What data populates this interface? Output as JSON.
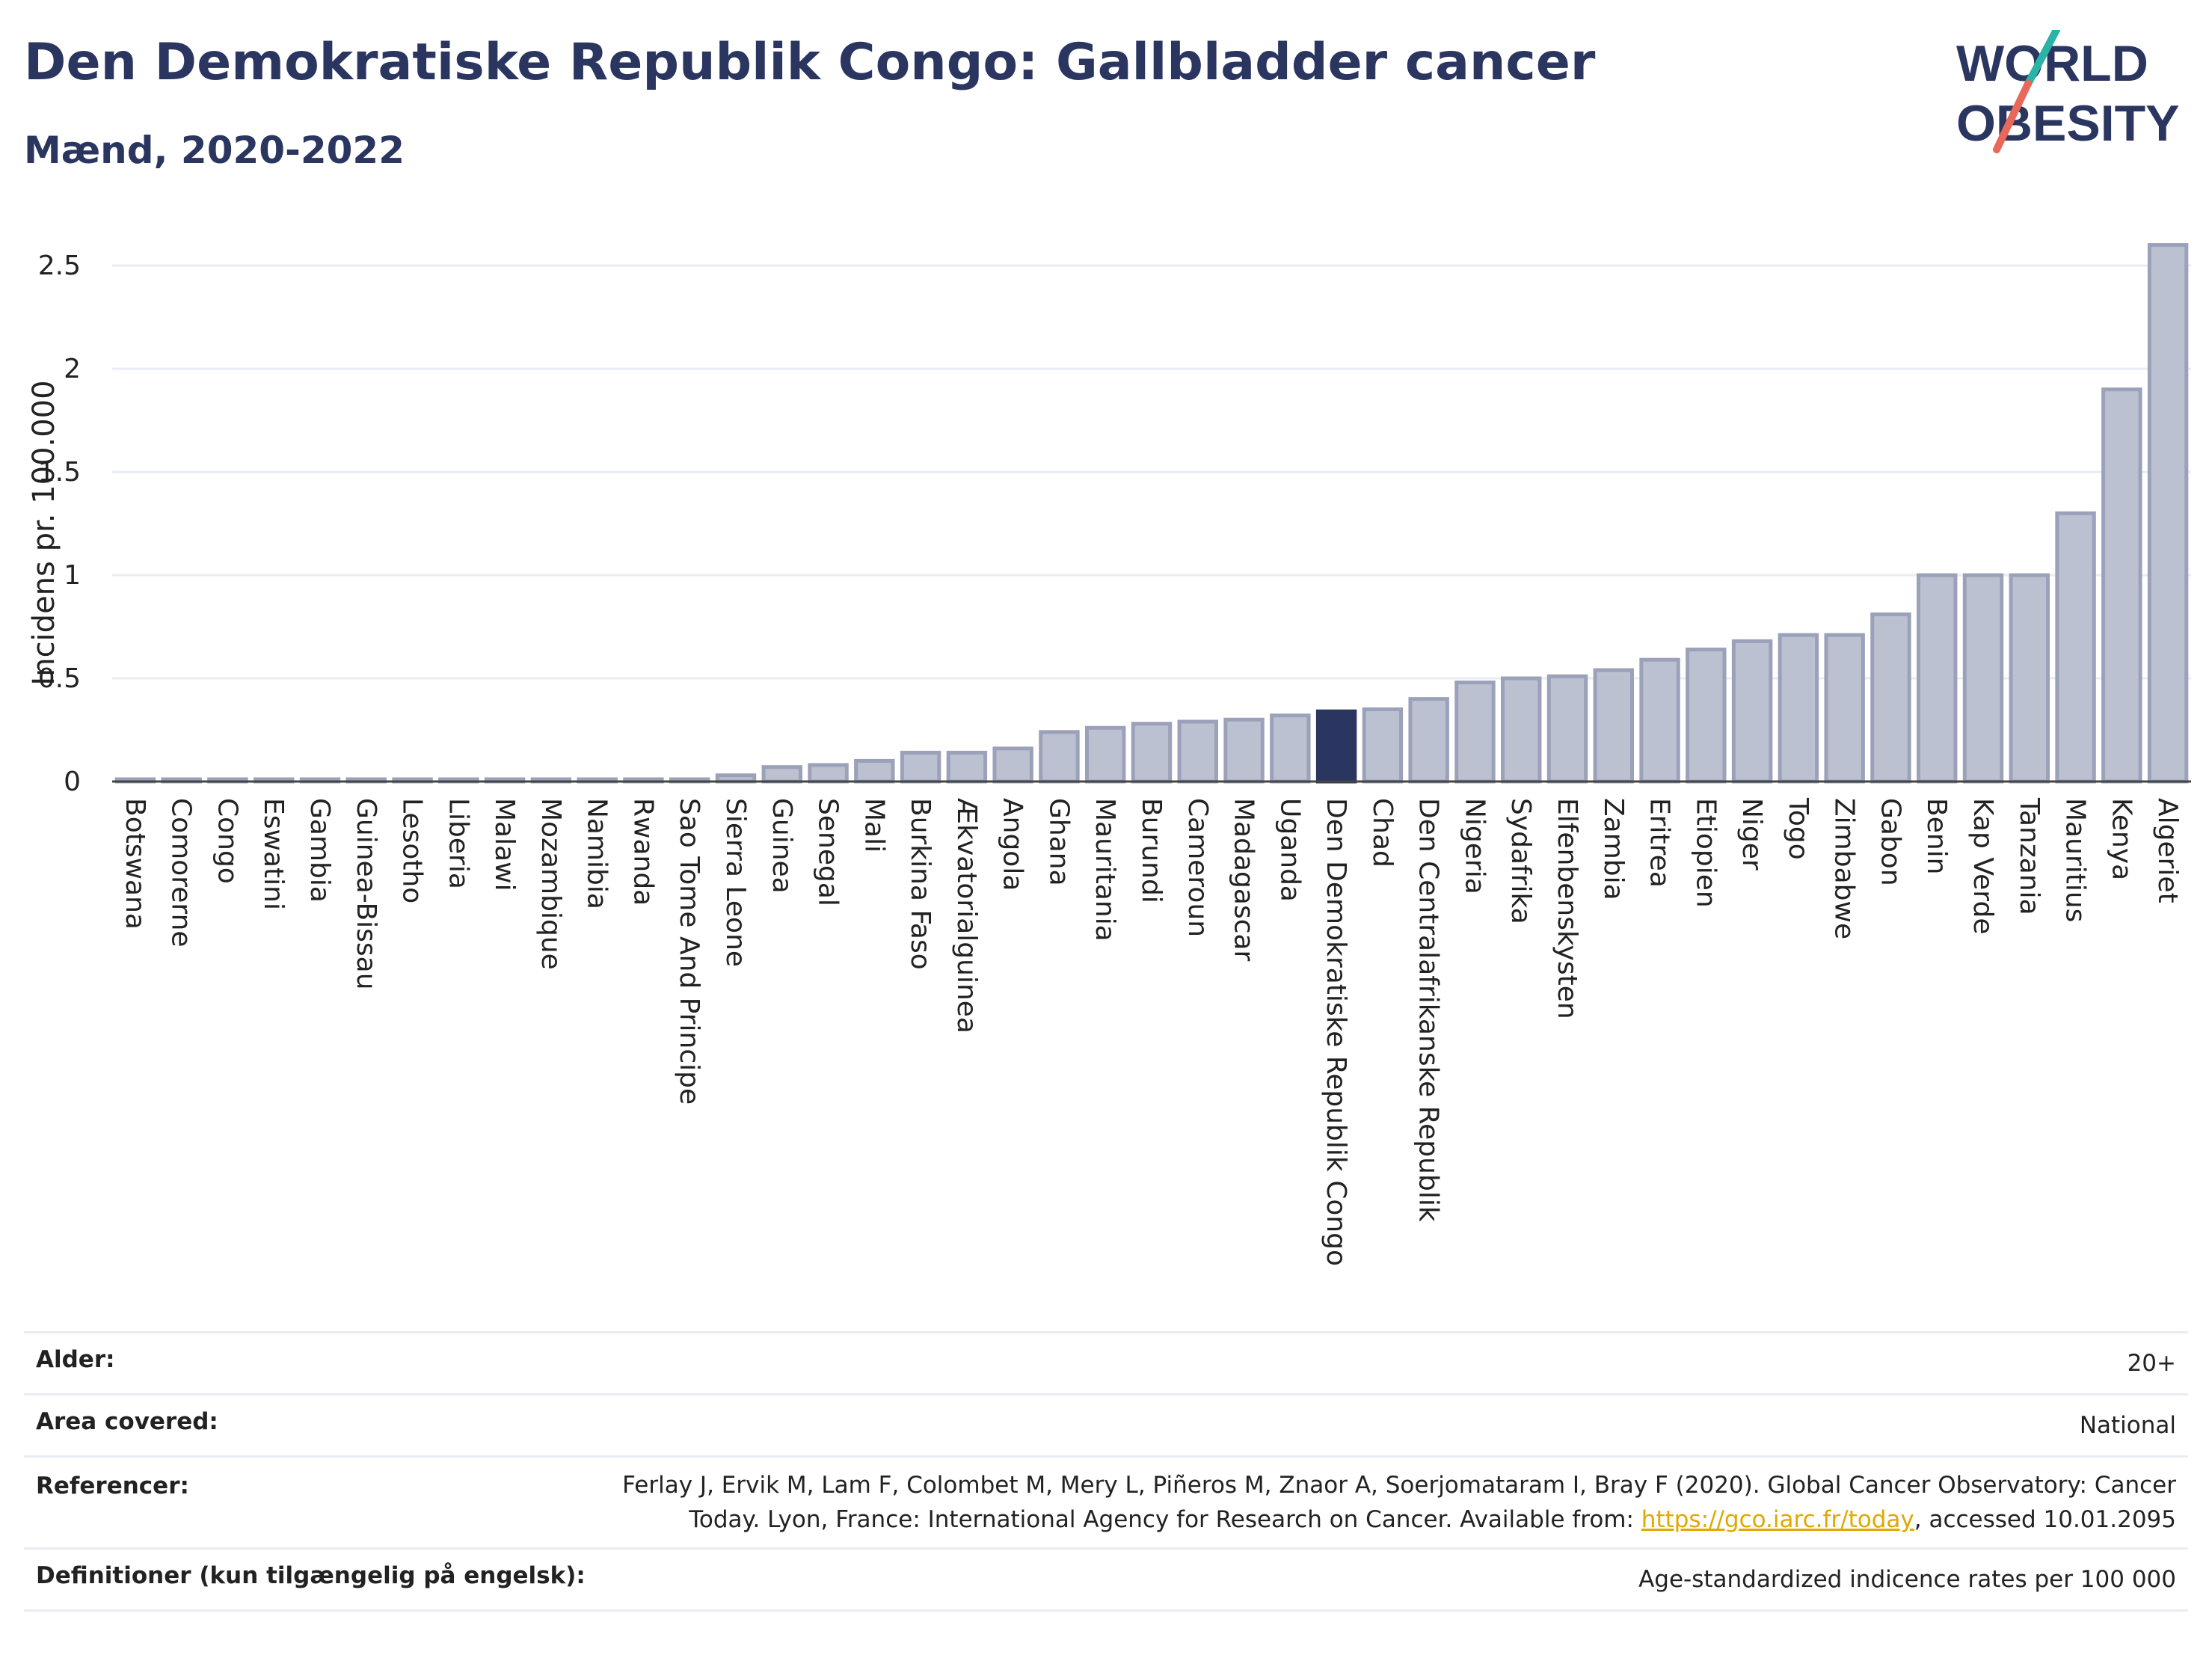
{
  "header": {
    "title": "Den Demokratiske Republik Congo: Gallbladder cancer",
    "subtitle": "Mænd, 2020-2022"
  },
  "logo": {
    "line1": "WORLD",
    "line2": "OBESITY",
    "colors": {
      "text": "#2b3660",
      "slash_top": "#2ab3a6",
      "slash_bottom": "#e8685a"
    }
  },
  "chart_data": {
    "type": "bar",
    "ylabel": "Incidens pr. 100.000",
    "ylim": [
      0,
      2.7
    ],
    "yticks": [
      0,
      0.5,
      1,
      1.5,
      2,
      2.5
    ],
    "ytick_labels": [
      "0",
      "0.5",
      "1",
      "1.5",
      "2",
      "2.5"
    ],
    "grid": true,
    "highlight": "Den Demokratiske Republik Congo",
    "colors": {
      "bar": "#bcc1d1",
      "bar_border": "#9aa1b9",
      "highlight": "#2b3660",
      "grid": "#e8ecf3",
      "axis": "#444444"
    },
    "categories": [
      "Botswana",
      "Comorerne",
      "Congo",
      "Eswatini",
      "Gambia",
      "Guinea-Bissau",
      "Lesotho",
      "Liberia",
      "Malawi",
      "Mozambique",
      "Namibia",
      "Rwanda",
      "Sao Tome And Principe",
      "Sierra Leone",
      "Guinea",
      "Senegal",
      "Mali",
      "Burkina Faso",
      "Ækvatorialguinea",
      "Angola",
      "Ghana",
      "Mauritania",
      "Burundi",
      "Cameroun",
      "Madagascar",
      "Uganda",
      "Den Demokratiske Republik Congo",
      "Chad",
      "Den Centralafrikanske Republik",
      "Nigeria",
      "Sydafrika",
      "Elfenbenskysten",
      "Zambia",
      "Eritrea",
      "Etiopien",
      "Niger",
      "Togo",
      "Zimbabwe",
      "Gabon",
      "Benin",
      "Kap Verde",
      "Tanzania",
      "Mauritius",
      "Kenya",
      "Algeriet"
    ],
    "values": [
      0.01,
      0.01,
      0.01,
      0.01,
      0.01,
      0.01,
      0.01,
      0.01,
      0.01,
      0.01,
      0.01,
      0.01,
      0.01,
      0.03,
      0.07,
      0.08,
      0.1,
      0.14,
      0.14,
      0.16,
      0.24,
      0.26,
      0.28,
      0.29,
      0.3,
      0.32,
      0.34,
      0.35,
      0.4,
      0.48,
      0.5,
      0.51,
      0.54,
      0.59,
      0.64,
      0.68,
      0.71,
      0.71,
      0.81,
      1.0,
      1.0,
      1.0,
      1.3,
      1.9,
      2.6
    ]
  },
  "info": {
    "age_label": "Alder:",
    "age_value": "20+",
    "area_label": "Area covered:",
    "area_value": "National",
    "ref_label": "Referencer:",
    "ref_text_1": "Ferlay J, Ervik M, Lam F, Colombet M, Mery L, Piñeros M, Znaor A, Soerjomataram I, Bray F (2020). Global Cancer Observatory: Cancer Today. Lyon, France: International Agency for Research on Cancer. Available from: ",
    "ref_link": "https://gco.iarc.fr/today",
    "ref_text_2": ", accessed 10.01.2095",
    "def_label": "Definitioner (kun tilgængelig på engelsk):",
    "def_value": "Age-standardized indicence rates per 100 000"
  }
}
